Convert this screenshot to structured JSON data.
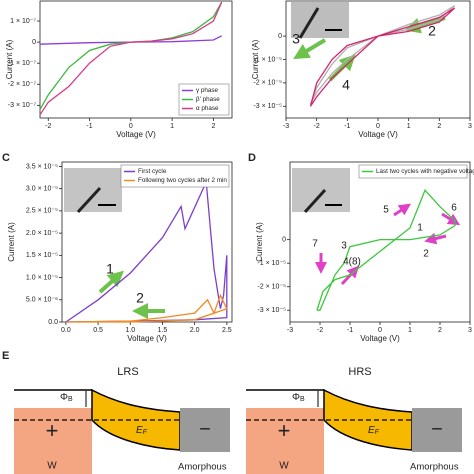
{
  "chart_data": [
    {
      "type": "line",
      "ylabel": "Current (A)",
      "xlabel": "Voltage (V)",
      "xlim": [
        -2.2,
        2.45
      ],
      "ylim": [
        -3.6e-07,
        1.95e-07
      ],
      "xticks": [
        -2,
        -1,
        0,
        1,
        2
      ],
      "yticks": [
        {
          "value": 1e-07,
          "label": "1 × 10⁻⁷"
        },
        0,
        {
          "value": -1e-07,
          "label": "-1 × 10⁻⁷"
        },
        {
          "value": -2e-07,
          "label": "-2 × 10⁻⁷"
        },
        {
          "value": -3e-07,
          "label": "-3 × 10⁻⁷"
        }
      ],
      "legend": "lower right",
      "series": [
        {
          "name": "γ phase",
          "color": "#8e3fd0",
          "x": [
            -2.2,
            -1,
            0,
            1,
            2,
            2.2
          ],
          "values": [
            -1e-08,
            -3e-09,
            0,
            2e-09,
            1e-08,
            3e-08
          ]
        },
        {
          "name": "β' phase",
          "color": "#3cb83c",
          "x": [
            -2.2,
            -2,
            -1.5,
            -1,
            -0.5,
            0,
            0.5,
            1,
            1.5,
            2,
            2.2
          ],
          "values": [
            -3.2e-07,
            -2.5e-07,
            -1.2e-07,
            -4e-08,
            -1e-08,
            0,
            5e-09,
            2e-08,
            5e-08,
            1.2e-07,
            1.9e-07
          ]
        },
        {
          "name": "α phase",
          "color": "#d63a8a",
          "x": [
            -2.2,
            -2,
            -1.5,
            -1,
            -0.5,
            0,
            0.5,
            1,
            1.5,
            2,
            2.2
          ],
          "values": [
            -3.45e-07,
            -2.85e-07,
            -2.1e-07,
            -1e-07,
            -2e-08,
            0,
            5e-09,
            1.5e-08,
            4e-08,
            1e-07,
            1.9e-07
          ]
        }
      ]
    },
    {
      "type": "line",
      "ylabel": "Current (A)",
      "xlabel": "Voltage (V)",
      "xlim": [
        -3,
        3
      ],
      "ylim": [
        -3.5e-05,
        1.5e-05
      ],
      "xticks": [
        -3,
        -2,
        -1,
        0,
        1,
        2,
        3
      ],
      "yticks": [
        0,
        {
          "value": -1e-05,
          "label": "-1 × 10⁻⁵"
        },
        {
          "value": -2e-05,
          "label": "-2 × 10⁻⁵"
        },
        {
          "value": -3e-05,
          "label": "-3 × 10⁻⁵"
        }
      ],
      "annotations": [
        "2",
        "3",
        "4"
      ],
      "series": [
        {
          "color": "#b0b0b0",
          "x": [
            -2.2,
            -2,
            -1.5,
            -1,
            0,
            1,
            2,
            2.5,
            2,
            1,
            0,
            -1,
            -1.5,
            -2,
            -2.2
          ],
          "values": [
            -2.9e-05,
            -2.4e-05,
            -1.6e-05,
            -1e-05,
            0,
            5e-06,
            9e-06,
            1.3e-05,
            7e-06,
            3e-06,
            0,
            -5e-06,
            -1.2e-05,
            -2.2e-05,
            -2.9e-05
          ]
        },
        {
          "color": "#d6246e",
          "x": [
            -2.2,
            -2,
            -1.5,
            -1,
            0,
            1,
            2,
            2.5,
            2,
            1,
            0,
            -1,
            -1.5,
            -2,
            -2.2
          ],
          "values": [
            -3e-05,
            -2.6e-05,
            -1.8e-05,
            -1.2e-05,
            0,
            4e-06,
            8e-06,
            1.2e-05,
            6e-06,
            2e-06,
            0,
            -4e-06,
            -1e-05,
            -2e-05,
            -3e-05
          ]
        }
      ]
    },
    {
      "type": "line",
      "panel": "C",
      "ylabel": "Current (A)",
      "xlabel": "Voltage (V)",
      "xlim": [
        -0.06,
        2.58
      ],
      "ylim": [
        0,
        3.6e-05
      ],
      "xticks": [
        {
          "value": 0,
          "label": "0.0"
        },
        {
          "value": 0.5,
          "label": "0.5"
        },
        {
          "value": 1,
          "label": "1.0"
        },
        {
          "value": 1.5,
          "label": "1.5"
        },
        {
          "value": 2,
          "label": "2.0"
        },
        {
          "value": 2.5,
          "label": "2.5"
        }
      ],
      "yticks": [
        {
          "value": 0,
          "label": "0.0"
        },
        {
          "value": 5e-06,
          "label": "5.0 × 10⁻⁶"
        },
        {
          "value": 1e-05,
          "label": "1.0 × 10⁻⁵"
        },
        {
          "value": 1.5e-05,
          "label": "1.5 × 10⁻⁵"
        },
        {
          "value": 2e-05,
          "label": "2.0 × 10⁻⁵"
        },
        {
          "value": 2.5e-05,
          "label": "2.5 × 10⁻⁵"
        },
        {
          "value": 3e-05,
          "label": "3.0 × 10⁻⁵"
        },
        {
          "value": 3.5e-05,
          "label": "3.5 × 10⁻⁵"
        }
      ],
      "legend": "upper right",
      "annotations": [
        "1",
        "2"
      ],
      "series": [
        {
          "name": "First cycle",
          "color": "#7b3fc9",
          "x": [
            0,
            0.5,
            1,
            1.5,
            1.79,
            1.85,
            2.18,
            2.3,
            2.4,
            2.45,
            2.5,
            2.5,
            2,
            1,
            0
          ],
          "values": [
            0,
            5e-06,
            1.1e-05,
            1.9e-05,
            2.6e-05,
            2.1e-05,
            3.15e-05,
            1.2e-05,
            3e-06,
            6e-06,
            1.5e-05,
            1e-06,
            5e-07,
            2e-07,
            0
          ]
        },
        {
          "name": "Following two cycles after 2 min",
          "color": "#f08a24",
          "x": [
            0,
            1,
            1.5,
            2,
            2.2,
            2.3,
            2.4,
            2.5,
            2,
            1,
            0
          ],
          "values": [
            0,
            2e-07,
            1e-06,
            2e-06,
            5e-06,
            2e-06,
            6e-06,
            3e-06,
            5e-07,
            0,
            0
          ]
        }
      ]
    },
    {
      "type": "line",
      "panel": "D",
      "ylabel": "Current (A)",
      "xlabel": "Voltage (V)",
      "xlim": [
        -3,
        3
      ],
      "ylim": [
        -3.5e-05,
        3.3e-05
      ],
      "xticks": [
        -3,
        -2,
        -1,
        0,
        1,
        2,
        3
      ],
      "yticks": [
        0,
        {
          "value": -1e-05,
          "label": "-1 × 10⁻⁵"
        },
        {
          "value": -2e-05,
          "label": "-2 × 10⁻⁵"
        },
        {
          "value": -3e-05,
          "label": "-3 × 10⁻⁵"
        }
      ],
      "legend": "upper right",
      "annotations": [
        "5",
        "1",
        "6",
        "2",
        "7",
        "3",
        "4(8)"
      ],
      "series": [
        {
          "name": "Last two cycles with negative voltage",
          "color": "#3cc83c",
          "x": [
            -2.1,
            -1.9,
            -1.5,
            -1,
            0,
            1,
            1.5,
            2,
            2.5,
            2.5,
            2,
            1,
            0,
            -1,
            -1.2,
            -1.5,
            -2,
            -2.1
          ],
          "values": [
            -3e-05,
            -2.2e-05,
            -1.7e-05,
            -1.5e-05,
            -5e-06,
            5e-06,
            2.1e-05,
            1.4e-05,
            8e-06,
            6e-06,
            2e-06,
            0,
            0,
            -3e-06,
            -1e-05,
            -1.5e-05,
            -3e-05,
            -3e-05
          ]
        }
      ]
    }
  ],
  "diagram": {
    "label": "E",
    "panels": [
      {
        "title": "LRS",
        "barrier": "Φ",
        "barrier_sub": "B",
        "fermi": "E",
        "fermi_sub": "F",
        "metal_sign": "+",
        "metal": "W",
        "oxide_sign": "−",
        "oxide": "Amorphous"
      },
      {
        "title": "HRS",
        "barrier": "Φ",
        "barrier_sub": "B",
        "fermi": "E",
        "fermi_sub": "F",
        "metal_sign": "+",
        "metal": "W",
        "oxide_sign": "−",
        "oxide": "Amorphous"
      }
    ]
  }
}
